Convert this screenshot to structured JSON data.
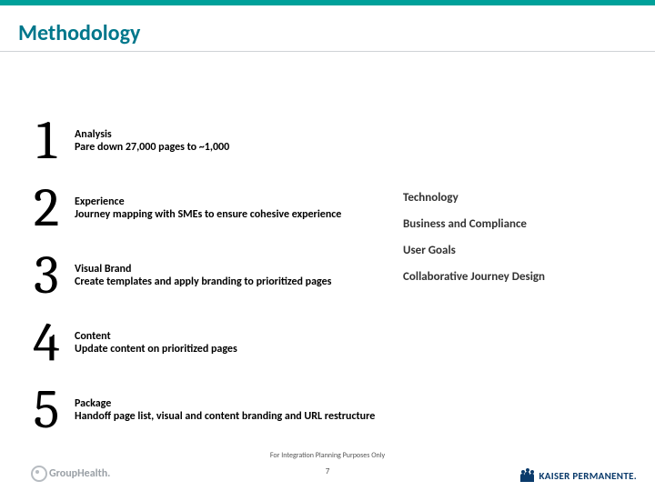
{
  "colors": {
    "accent_bar": "#00a19a",
    "title": "#00778b",
    "underline": "#cfd3d6",
    "text": "#000000",
    "muted": "#555555",
    "logo_left": "#9aa0a6",
    "logo_right": "#0a3a6b"
  },
  "title": "Methodology",
  "steps": [
    {
      "num": "1",
      "heading": "Analysis",
      "desc": "Pare down 27,000 pages to ~1,000"
    },
    {
      "num": "2",
      "heading": "Experience",
      "desc": "Journey mapping with SMEs to ensure cohesive experience"
    },
    {
      "num": "3",
      "heading": "Visual Brand",
      "desc": "Create templates and apply branding to prioritized pages"
    },
    {
      "num": "4",
      "heading": "Content",
      "desc": "Update content on prioritized pages"
    },
    {
      "num": "5",
      "heading": "Package",
      "desc": "Handoff page list, visual and content branding and URL restructure"
    }
  ],
  "right_items": [
    "Technology",
    "Business and Compliance",
    "User Goals",
    "Collaborative Journey Design"
  ],
  "footer": "For Integration Planning Purposes Only",
  "page_number": "7",
  "logo_left_text": "GroupHealth.",
  "logo_right_text": "KAISER PERMANENTE."
}
